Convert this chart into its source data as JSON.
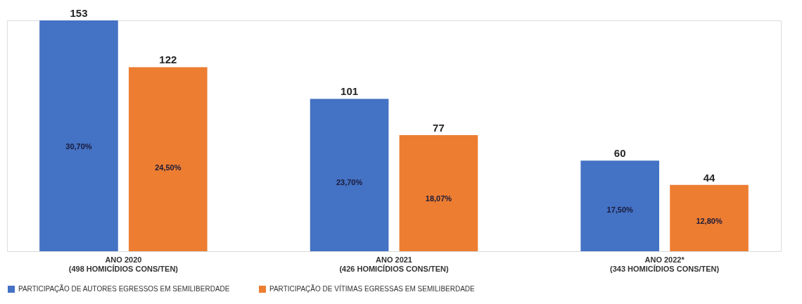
{
  "chart_data": {
    "type": "bar",
    "categories": [
      "ANO 2020\n(498 HOMICÍDIOS CONS/TEN)",
      "ANO 2021\n(426 HOMICÍDIOS CONS/TEN)",
      "ANO 2022*\n(343 HOMICÍDIOS CONS/TEN)"
    ],
    "series": [
      {
        "name": "PARTICIPAÇÃO DE AUTORES EGRESSOS EM SEMILIBERDADE",
        "color": "#4472c4",
        "values": [
          153,
          101,
          60
        ]
      },
      {
        "name": "PARTICIPAÇÃO DE VÍTIMAS EGRESSAS EM SEMILIBERDADE",
        "color": "#ed7d31",
        "values": [
          122,
          77,
          44
        ]
      }
    ],
    "data_labels": true,
    "legend": "bottom",
    "annotations": [
      "30,70%",
      "24,50%",
      "23,70%",
      "18,07%",
      "17,50%",
      "12,80%"
    ]
  }
}
